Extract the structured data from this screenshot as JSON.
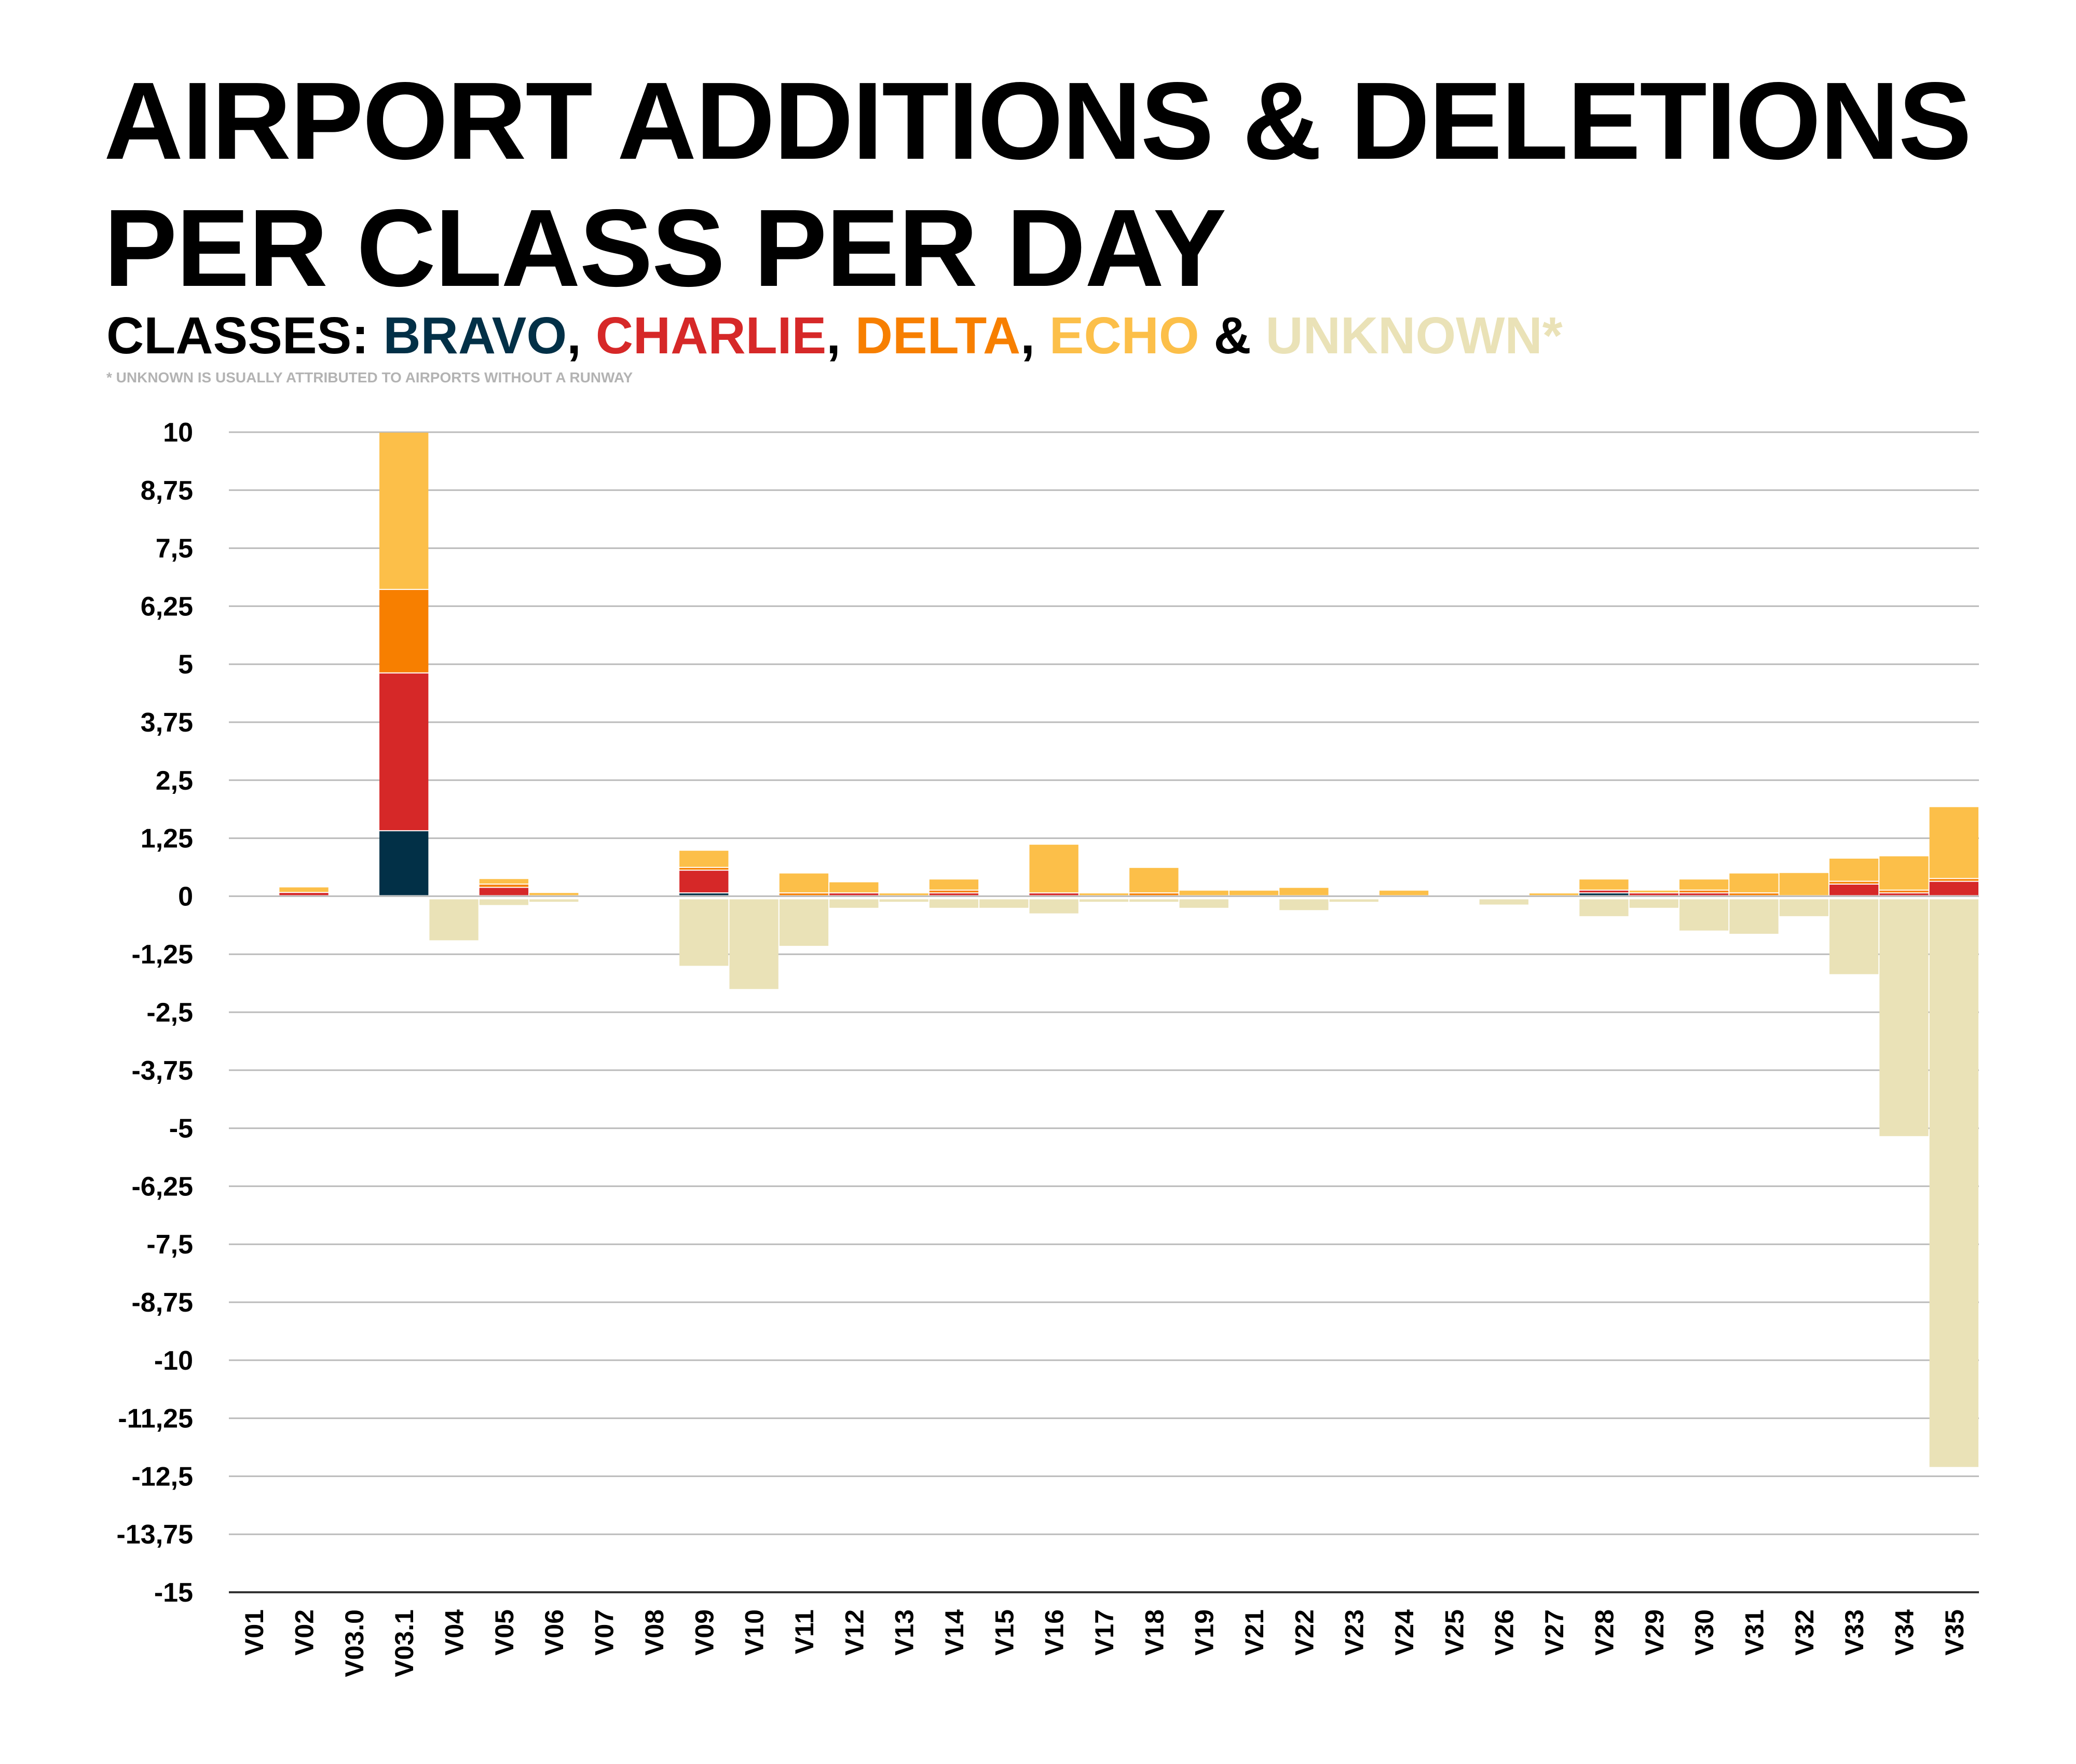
{
  "title_lines": [
    "AIRPORT ADDITIONS & DELETIONS",
    "PER CLASS PER DAY"
  ],
  "subtitle": {
    "prefix": "CLASSES: ",
    "bravo": "BRAVO",
    "sep1": ", ",
    "charlie": "CHARLIE",
    "sep2": ", ",
    "delta": "DELTA",
    "sep3": ", ",
    "echo": "ECHO",
    "sep4": " & ",
    "unknown": "UNKNOWN*"
  },
  "footnote": "* UNKNOWN IS USUALLY ATTRIBUTED TO AIRPORTS WITHOUT A RUNWAY",
  "colors": {
    "bravo": "#023047",
    "charlie": "#d62828",
    "delta": "#f77f00",
    "echo": "#fcbf49",
    "unknown": "#eae2b7",
    "grid": "#bbbbbb"
  },
  "chart_data": {
    "type": "bar",
    "stacked": true,
    "title": "AIRPORT ADDITIONS & DELETIONS PER CLASS PER DAY",
    "xlabel": "",
    "ylabel": "",
    "ylim": [
      -15,
      10
    ],
    "grid": true,
    "yticks": [
      10,
      8.75,
      7.5,
      6.25,
      5,
      3.75,
      2.5,
      1.25,
      0,
      -1.25,
      -2.5,
      -3.75,
      -5,
      -6.25,
      -7.5,
      -8.75,
      -10,
      -11.25,
      -12.5,
      -13.75,
      -15
    ],
    "ytick_labels": [
      "10",
      "8,75",
      "7,5",
      "6,25",
      "5",
      "3,75",
      "2,5",
      "1,25",
      "0",
      "-1,25",
      "-2,5",
      "-3,75",
      "-5",
      "-6,25",
      "-7,5",
      "-8,75",
      "-10",
      "-11,25",
      "-12,5",
      "-13,75",
      "-15"
    ],
    "categories": [
      "V01",
      "V02",
      "V03.0",
      "V03.1",
      "V04",
      "V05",
      "V06",
      "V07",
      "V08",
      "V09",
      "V10",
      "V11",
      "V12",
      "V13",
      "V14",
      "V15",
      "V16",
      "V17",
      "V18",
      "V19",
      "V21",
      "V22",
      "V23",
      "V24",
      "V25",
      "V26",
      "V27",
      "V28",
      "V29",
      "V30",
      "V31",
      "V32",
      "V33",
      "V34",
      "V35"
    ],
    "series": [
      {
        "name": "BRAVO",
        "key": "bravo",
        "values": [
          0,
          0,
          0,
          1.4,
          0,
          0,
          0,
          0,
          0,
          0.06,
          0,
          0,
          0,
          0,
          0,
          0,
          0,
          0,
          0,
          0,
          0,
          0,
          0,
          0,
          0,
          0,
          0,
          0.06,
          0,
          0,
          0,
          0,
          0,
          0,
          0
        ]
      },
      {
        "name": "CHARLIE",
        "key": "charlie",
        "values": [
          0,
          0.07,
          0,
          3.4,
          0,
          0.18,
          0,
          0,
          0,
          0.49,
          0,
          0,
          0.06,
          0,
          0.06,
          0,
          0.06,
          0,
          0,
          0,
          0,
          0,
          0,
          0,
          0,
          0,
          0,
          0.06,
          0.06,
          0.06,
          0,
          0,
          0.25,
          0.06,
          0.31
        ]
      },
      {
        "name": "DELTA",
        "key": "delta",
        "values": [
          0,
          0,
          0,
          1.8,
          0,
          0.07,
          0,
          0,
          0,
          0.06,
          0,
          0.06,
          0,
          0,
          0.06,
          0,
          0,
          0,
          0.06,
          0,
          0,
          0,
          0,
          0,
          0,
          0,
          0,
          0,
          0,
          0.06,
          0.06,
          0,
          0.06,
          0.06,
          0.06
        ]
      },
      {
        "name": "ECHO",
        "key": "echo",
        "values": [
          0,
          0.12,
          0,
          3.39,
          0,
          0.12,
          0.07,
          0,
          0,
          0.37,
          0,
          0.43,
          0.24,
          0.06,
          0.24,
          0,
          1.05,
          0.06,
          0.55,
          0.12,
          0.12,
          0.18,
          0,
          0.12,
          0,
          0,
          0.06,
          0.24,
          0.06,
          0.24,
          0.43,
          0.5,
          0.5,
          0.74,
          1.55
        ]
      },
      {
        "name": "UNKNOWN",
        "key": "unknown",
        "values": [
          0,
          0,
          0,
          0,
          -0.95,
          -0.19,
          -0.12,
          0,
          0,
          -1.5,
          -2.0,
          -1.07,
          -0.25,
          -0.12,
          -0.25,
          -0.25,
          -0.37,
          -0.12,
          -0.12,
          -0.25,
          -0.06,
          -0.3,
          -0.12,
          -0.06,
          -0.05,
          -0.18,
          0,
          -0.43,
          -0.25,
          -0.74,
          -0.81,
          -0.43,
          -1.68,
          -5.17,
          -12.3
        ]
      }
    ]
  }
}
